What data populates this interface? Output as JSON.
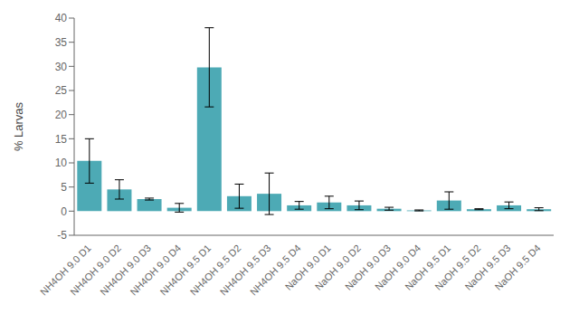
{
  "chart_data": {
    "type": "bar",
    "ylabel": "% Larvas",
    "categories": [
      "NH4OH 9.0 D1",
      "NH4OH 9.0 D2",
      "NH4OH 9.0 D3",
      "NH4OH 9.0 D4",
      "NH4OH 9.5 D1",
      "NH4OH 9.5 D2",
      "NH4OH 9.5 D3",
      "NH4OH 9.5 D4",
      "NaOH 9.0 D1",
      "NaOH 9.0 D2",
      "NaOH 9.0 D3",
      "NaOH 9.0 D4",
      "NaOH 9.5 D1",
      "NaOH 9.5 D2",
      "NaOH 9.5 D3",
      "NaOH 9.5 D4"
    ],
    "values": [
      10.4,
      4.5,
      2.5,
      0.7,
      29.8,
      3.1,
      3.6,
      1.2,
      1.8,
      1.2,
      0.5,
      0.15,
      2.2,
      0.4,
      1.2,
      0.4
    ],
    "errors": [
      4.6,
      2.0,
      0.2,
      0.9,
      8.2,
      2.5,
      4.3,
      0.8,
      1.3,
      0.9,
      0.3,
      0.1,
      1.8,
      0.1,
      0.7,
      0.3
    ],
    "color": "#4daab5",
    "ylim": [
      -5,
      40
    ],
    "yticks": [
      -5,
      0,
      5,
      10,
      15,
      20,
      25,
      30,
      35,
      40
    ],
    "grid": false
  }
}
